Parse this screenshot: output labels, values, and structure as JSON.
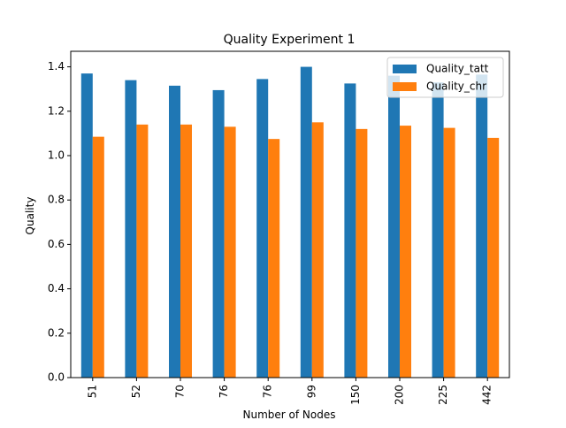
{
  "chart_data": {
    "type": "bar",
    "title": "Quality Experiment 1",
    "xlabel": "Number of Nodes",
    "ylabel": "Quality",
    "categories": [
      "51",
      "52",
      "70",
      "76",
      "76",
      "99",
      "150",
      "200",
      "225",
      "442"
    ],
    "series": [
      {
        "name": "Quality_tatt",
        "color": "#1f77b4",
        "values": [
          1.37,
          1.34,
          1.315,
          1.295,
          1.345,
          1.4,
          1.325,
          1.36,
          1.33,
          1.365
        ]
      },
      {
        "name": "Quality_chr",
        "color": "#ff7f0e",
        "values": [
          1.085,
          1.14,
          1.14,
          1.13,
          1.075,
          1.15,
          1.12,
          1.135,
          1.125,
          1.08
        ]
      }
    ],
    "ylim": [
      0,
      1.47
    ],
    "yticks": [
      "0.0",
      "0.2",
      "0.4",
      "0.6",
      "0.8",
      "1.0",
      "1.2",
      "1.4"
    ],
    "legend_position": "top-right",
    "grid": false
  }
}
